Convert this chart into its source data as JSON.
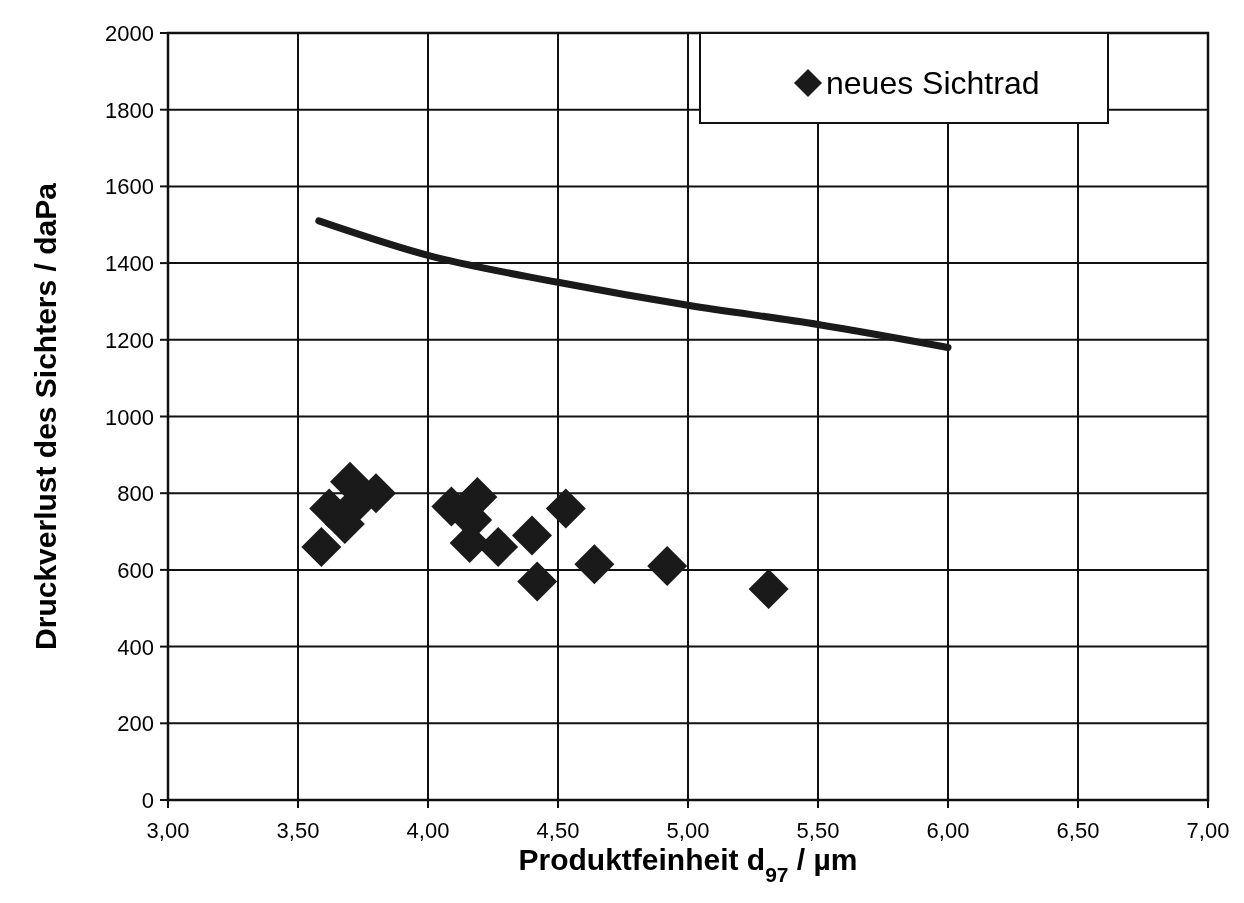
{
  "chart_data": {
    "type": "scatter",
    "xlabel": "Produktfeinheit d$_{97}$ / µm",
    "ylabel": "Druckverlust des Sichters / daPa",
    "xlim": [
      3,
      7
    ],
    "ylim": [
      0,
      2000
    ],
    "xticks": [
      {
        "value": 3,
        "label": "3,00"
      },
      {
        "value": 3.5,
        "label": "3,50"
      },
      {
        "value": 4,
        "label": "4,00"
      },
      {
        "value": 4.5,
        "label": "4,50"
      },
      {
        "value": 5,
        "label": "5,00"
      },
      {
        "value": 5.5,
        "label": "5,50"
      },
      {
        "value": 6,
        "label": "6,00"
      },
      {
        "value": 6.5,
        "label": "6,50"
      },
      {
        "value": 7,
        "label": "7,00"
      }
    ],
    "yticks": [
      0,
      200,
      400,
      600,
      800,
      1000,
      1200,
      1400,
      1600,
      1800,
      2000
    ],
    "grid": true,
    "legend": "top right",
    "series": [
      {
        "name": "neues Sichtrad",
        "marker": "diamond",
        "color": "#1a1a1a",
        "x": [
          3.59,
          3.7,
          3.8,
          3.62,
          3.68,
          3.72,
          4.09,
          4.19,
          4.17,
          4.16,
          4.27,
          4.4,
          4.53,
          4.42,
          4.64,
          4.92,
          5.31
        ],
        "values": [
          660,
          830,
          800,
          760,
          720,
          770,
          765,
          790,
          730,
          670,
          660,
          690,
          760,
          570,
          615,
          610,
          550
        ]
      },
      {
        "type": "line",
        "marker": "none",
        "line_style": "solid",
        "color": "#1a1a1a",
        "x": [
          3.58,
          4,
          4.5,
          5,
          5.5,
          6
        ],
        "values": [
          1510,
          1420,
          1350,
          1290,
          1240,
          1180
        ]
      }
    ]
  }
}
